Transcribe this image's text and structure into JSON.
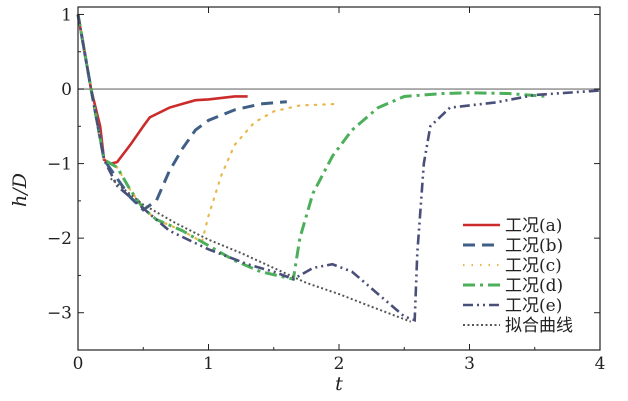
{
  "chart_data": {
    "type": "line",
    "xlabel": "t",
    "ylabel": "h/D",
    "xlim": [
      0,
      4
    ],
    "ylim": [
      -3.5,
      1.1
    ],
    "xticks": [
      "0",
      "1",
      "2",
      "3",
      "4"
    ],
    "yticks": [
      "1",
      "0",
      "−1",
      "−2",
      "−3"
    ],
    "grid": false,
    "reference_line_y": 0,
    "legend_position": "bottom-right",
    "series": [
      {
        "name": "工况(a)",
        "color": "#cc2b2b",
        "style": "solid",
        "points": [
          [
            0,
            1
          ],
          [
            0.1,
            0
          ],
          [
            0.17,
            -0.5
          ],
          [
            0.2,
            -0.95
          ],
          [
            0.25,
            -1.0
          ],
          [
            0.3,
            -0.98
          ],
          [
            0.4,
            -0.75
          ],
          [
            0.5,
            -0.5
          ],
          [
            0.55,
            -0.38
          ],
          [
            0.7,
            -0.25
          ],
          [
            0.8,
            -0.2
          ],
          [
            0.9,
            -0.15
          ],
          [
            1.0,
            -0.14
          ],
          [
            1.1,
            -0.12
          ],
          [
            1.2,
            -0.1
          ],
          [
            1.3,
            -0.1
          ]
        ]
      },
      {
        "name": "工况(b)",
        "color": "#3f5f86",
        "style": "dash",
        "points": [
          [
            0,
            1
          ],
          [
            0.1,
            0
          ],
          [
            0.2,
            -0.95
          ],
          [
            0.3,
            -1.2
          ],
          [
            0.4,
            -1.45
          ],
          [
            0.5,
            -1.62
          ],
          [
            0.6,
            -1.5
          ],
          [
            0.7,
            -1.1
          ],
          [
            0.8,
            -0.8
          ],
          [
            0.9,
            -0.55
          ],
          [
            1.0,
            -0.42
          ],
          [
            1.2,
            -0.28
          ],
          [
            1.4,
            -0.2
          ],
          [
            1.6,
            -0.17
          ]
        ]
      },
      {
        "name": "工况(c)",
        "color": "#e8b84a",
        "style": "dot",
        "points": [
          [
            0,
            1
          ],
          [
            0.1,
            0
          ],
          [
            0.2,
            -0.95
          ],
          [
            0.3,
            -1.05
          ],
          [
            0.4,
            -1.35
          ],
          [
            0.5,
            -1.6
          ],
          [
            0.6,
            -1.75
          ],
          [
            0.8,
            -1.9
          ],
          [
            0.95,
            -2.05
          ],
          [
            1.0,
            -1.7
          ],
          [
            1.1,
            -1.15
          ],
          [
            1.2,
            -0.75
          ],
          [
            1.35,
            -0.45
          ],
          [
            1.5,
            -0.3
          ],
          [
            1.7,
            -0.22
          ],
          [
            2.0,
            -0.2
          ]
        ]
      },
      {
        "name": "工况(d)",
        "color": "#4caf5a",
        "style": "dashdot",
        "points": [
          [
            0,
            1
          ],
          [
            0.1,
            0
          ],
          [
            0.2,
            -0.95
          ],
          [
            0.3,
            -1.05
          ],
          [
            0.4,
            -1.35
          ],
          [
            0.5,
            -1.6
          ],
          [
            0.6,
            -1.75
          ],
          [
            0.8,
            -1.9
          ],
          [
            0.95,
            -2.05
          ],
          [
            1.2,
            -2.3
          ],
          [
            1.4,
            -2.45
          ],
          [
            1.65,
            -2.55
          ],
          [
            1.7,
            -2.0
          ],
          [
            1.8,
            -1.4
          ],
          [
            1.95,
            -0.9
          ],
          [
            2.1,
            -0.55
          ],
          [
            2.3,
            -0.25
          ],
          [
            2.5,
            -0.1
          ],
          [
            2.8,
            -0.06
          ],
          [
            3.0,
            -0.05
          ],
          [
            3.3,
            -0.06
          ],
          [
            3.6,
            -0.1
          ]
        ]
      },
      {
        "name": "工况(e)",
        "color": "#4a4f7a",
        "style": "dashdotdot",
        "points": [
          [
            0,
            1
          ],
          [
            0.1,
            0
          ],
          [
            0.2,
            -0.95
          ],
          [
            0.3,
            -1.3
          ],
          [
            0.5,
            -1.6
          ],
          [
            0.7,
            -1.9
          ],
          [
            1.0,
            -2.15
          ],
          [
            1.3,
            -2.35
          ],
          [
            1.5,
            -2.45
          ],
          [
            1.65,
            -2.55
          ],
          [
            1.8,
            -2.4
          ],
          [
            1.95,
            -2.35
          ],
          [
            2.1,
            -2.45
          ],
          [
            2.3,
            -2.75
          ],
          [
            2.5,
            -3.05
          ],
          [
            2.58,
            -3.1
          ],
          [
            2.6,
            -2.2
          ],
          [
            2.65,
            -1.0
          ],
          [
            2.7,
            -0.5
          ],
          [
            2.85,
            -0.25
          ],
          [
            3.0,
            -0.22
          ],
          [
            3.2,
            -0.18
          ],
          [
            3.5,
            -0.08
          ],
          [
            4.0,
            -0.02
          ]
        ]
      },
      {
        "name": "拟合曲线",
        "color": "#555555",
        "style": "finedot",
        "points": [
          [
            0.25,
            -1.2
          ],
          [
            0.5,
            -1.55
          ],
          [
            0.75,
            -1.8
          ],
          [
            1.0,
            -2.02
          ],
          [
            1.25,
            -2.2
          ],
          [
            1.5,
            -2.4
          ],
          [
            1.75,
            -2.6
          ],
          [
            2.0,
            -2.75
          ],
          [
            2.25,
            -2.92
          ],
          [
            2.55,
            -3.12
          ]
        ]
      }
    ]
  }
}
